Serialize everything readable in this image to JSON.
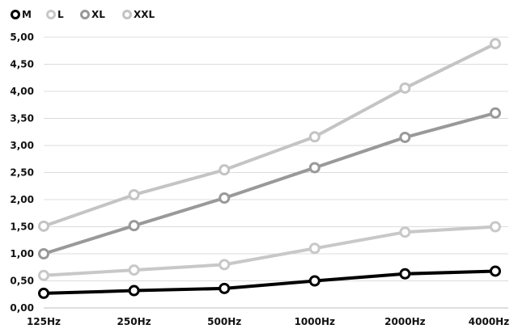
{
  "chart_data": {
    "type": "line",
    "categories": [
      "125Hz",
      "250Hz",
      "500Hz",
      "1000Hz",
      "2000Hz",
      "4000Hz"
    ],
    "ylim": [
      0,
      5
    ],
    "yticks": [
      0,
      0.5,
      1,
      1.5,
      2,
      2.5,
      3,
      3.5,
      4,
      4.5,
      5
    ],
    "ytick_labels": [
      "0,00",
      "0,50",
      "1,00",
      "1,50",
      "2,00",
      "2,50",
      "3,00",
      "3,50",
      "4,00",
      "4,50",
      "5,00"
    ],
    "grid": true,
    "legend_position": "top-left",
    "series": [
      {
        "name": "M",
        "color": "#000000",
        "values": [
          0.27,
          0.32,
          0.36,
          0.5,
          0.63,
          0.68
        ]
      },
      {
        "name": "L",
        "color": "#c8c8c8",
        "values": [
          0.6,
          0.7,
          0.8,
          1.1,
          1.4,
          1.5
        ]
      },
      {
        "name": "XL",
        "color": "#999999",
        "values": [
          1.0,
          1.52,
          2.03,
          2.59,
          3.15,
          3.6
        ]
      },
      {
        "name": "XXL",
        "color": "#c4c4c4",
        "values": [
          1.51,
          2.09,
          2.55,
          3.16,
          4.06,
          4.88
        ]
      }
    ]
  }
}
